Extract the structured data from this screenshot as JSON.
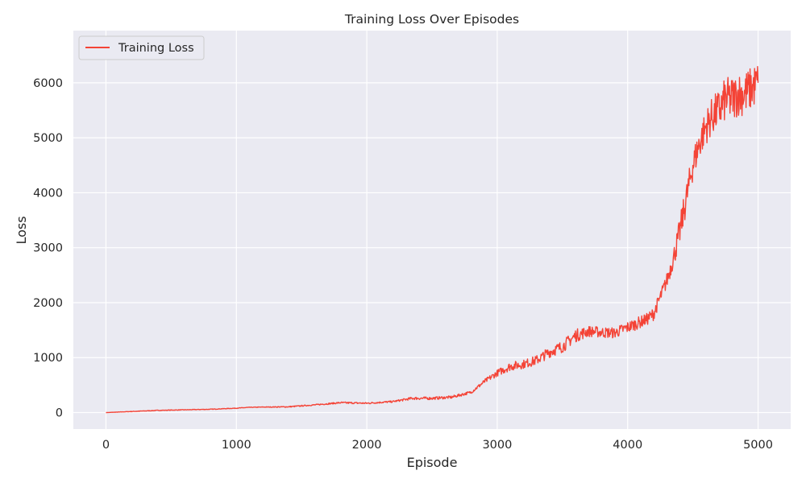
{
  "chart_data": {
    "type": "line",
    "title": "Training Loss Over Episodes",
    "xlabel": "Episode",
    "ylabel": "Loss",
    "xlim": [
      -250,
      5250
    ],
    "ylim": [
      -300,
      6950
    ],
    "x_ticks": [
      0,
      1000,
      2000,
      3000,
      4000,
      5000
    ],
    "y_ticks": [
      0,
      1000,
      2000,
      3000,
      4000,
      5000,
      6000
    ],
    "x_tick_labels": [
      "0",
      "1000",
      "2000",
      "3000",
      "4000",
      "5000"
    ],
    "y_tick_labels": [
      "0",
      "1000",
      "2000",
      "3000",
      "4000",
      "5000",
      "6000"
    ],
    "grid": true,
    "legend": {
      "position": "top-left"
    },
    "series": [
      {
        "name": "Training Loss",
        "color": "#f44336",
        "x": [
          0,
          200,
          400,
          600,
          800,
          1000,
          1100,
          1200,
          1400,
          1600,
          1800,
          2000,
          2200,
          2350,
          2500,
          2650,
          2800,
          2900,
          3000,
          3100,
          3200,
          3300,
          3400,
          3500,
          3600,
          3700,
          3800,
          3900,
          4000,
          4100,
          4150,
          4200,
          4250,
          4300,
          4350,
          4400,
          4450,
          4500,
          4550,
          4600,
          4650,
          4700,
          4750,
          4800,
          4850,
          4900,
          4950,
          5000
        ],
        "y": [
          0,
          20,
          40,
          50,
          60,
          80,
          95,
          100,
          105,
          140,
          180,
          170,
          200,
          260,
          260,
          280,
          370,
          560,
          720,
          840,
          880,
          950,
          1100,
          1200,
          1400,
          1480,
          1460,
          1450,
          1550,
          1650,
          1700,
          1800,
          2100,
          2400,
          2800,
          3300,
          3900,
          4500,
          4900,
          5200,
          5400,
          5500,
          5700,
          5700,
          5800,
          5800,
          5900,
          6000
        ],
        "noise": [
          0,
          5,
          5,
          5,
          5,
          5,
          5,
          5,
          10,
          10,
          15,
          15,
          15,
          25,
          25,
          25,
          25,
          40,
          60,
          80,
          80,
          90,
          100,
          110,
          120,
          100,
          100,
          100,
          110,
          110,
          110,
          120,
          120,
          140,
          180,
          250,
          280,
          280,
          300,
          320,
          350,
          380,
          400,
          420,
          400,
          420,
          400,
          400
        ]
      }
    ]
  }
}
